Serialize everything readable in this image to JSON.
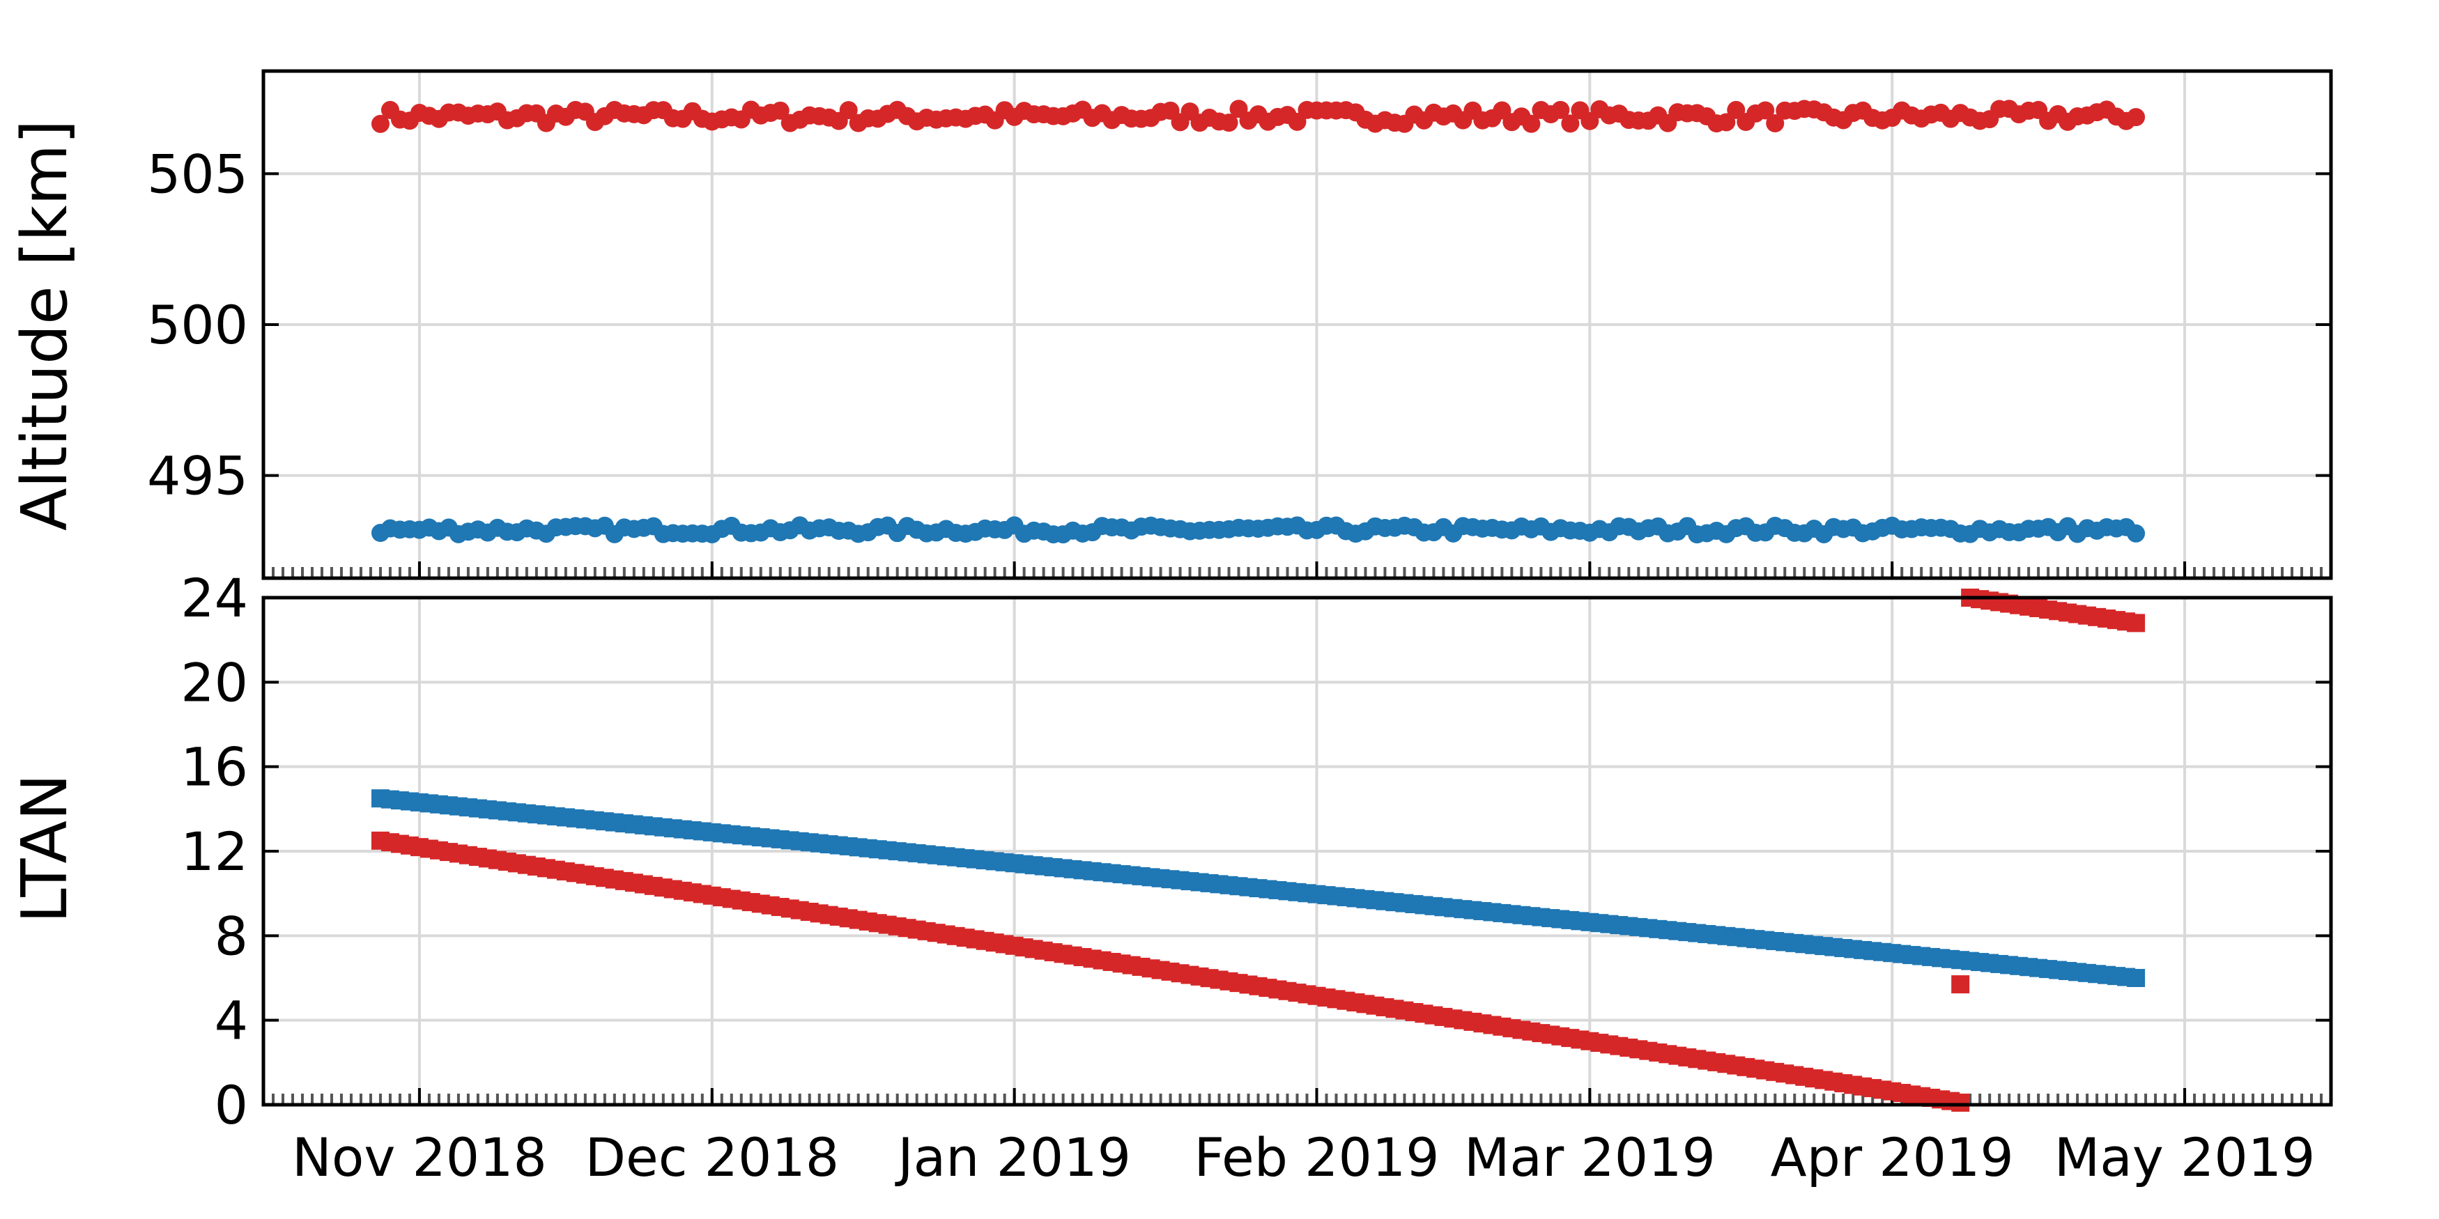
{
  "chart_data": [
    {
      "type": "scatter",
      "ylabel": "Altitude [km]",
      "ylim": [
        491.6,
        508.4
      ],
      "yticks": [
        495,
        500,
        505
      ],
      "xlim": [
        "2018-10-16",
        "2019-05-16"
      ],
      "x_tick_labels": [
        {
          "date": "2018-11-01",
          "label": "Nov 2018"
        },
        {
          "date": "2018-12-01",
          "label": "Dec 2018"
        },
        {
          "date": "2019-01-01",
          "label": "Jan 2019"
        },
        {
          "date": "2019-02-01",
          "label": "Feb 2019"
        },
        {
          "date": "2019-03-01",
          "label": "Mar 2019"
        },
        {
          "date": "2019-04-01",
          "label": "Apr 2019"
        },
        {
          "date": "2019-05-01",
          "label": "May 2019"
        }
      ],
      "grid": true,
      "marker": "circle",
      "date_range": [
        "2018-10-28",
        "2019-04-26"
      ],
      "series": [
        {
          "color": "#d62728",
          "level": 506.9,
          "noise": 0.25
        },
        {
          "color": "#1f77b4",
          "level": 493.2,
          "noise": 0.15
        }
      ]
    },
    {
      "type": "scatter",
      "ylabel": "LTAN",
      "ylim": [
        0,
        24
      ],
      "yticks": [
        0,
        4,
        8,
        12,
        16,
        20,
        24
      ],
      "grid": true,
      "marker": "square",
      "series": [
        {
          "color": "#1f77b4",
          "points": [
            [
              "2018-10-28",
              14.5
            ],
            [
              "2019-04-26",
              6.0
            ]
          ]
        },
        {
          "color": "#d62728",
          "points": [
            [
              "2018-10-28",
              12.5
            ],
            [
              "2019-04-08",
              0.1
            ]
          ]
        },
        {
          "color": "#d62728",
          "points": [
            [
              "2019-04-09",
              24.0
            ],
            [
              "2019-04-26",
              22.8
            ]
          ]
        },
        {
          "color": "#d62728",
          "points": [
            [
              "2019-04-08",
              5.7
            ]
          ]
        }
      ]
    }
  ]
}
